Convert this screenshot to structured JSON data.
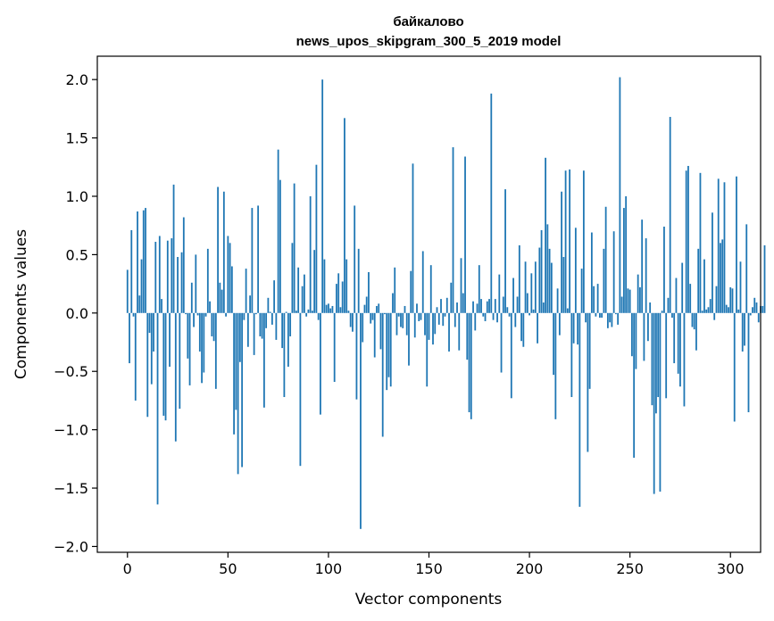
{
  "chart_data": {
    "type": "bar",
    "title": "байкалово",
    "subtitle": "news_upos_skipgram_300_5_2019 model",
    "xlabel": "Vector components",
    "ylabel": "Components values",
    "xlim": [
      -15,
      315
    ],
    "ylim": [
      -2.05,
      2.2
    ],
    "xticks": [
      0,
      50,
      100,
      150,
      200,
      250,
      300
    ],
    "xtick_labels": [
      "0",
      "50",
      "100",
      "150",
      "200",
      "250",
      "300"
    ],
    "yticks": [
      -2.0,
      -1.5,
      -1.0,
      -0.5,
      0.0,
      0.5,
      1.0,
      1.5,
      2.0
    ],
    "ytick_labels": [
      "−2.0",
      "−1.5",
      "−1.0",
      "−0.5",
      "0.0",
      "0.5",
      "1.0",
      "1.5",
      "2.0"
    ],
    "bar_color": "#1f77b4",
    "grid": false,
    "values": [
      0.37,
      -0.43,
      0.71,
      -0.03,
      -0.75,
      0.87,
      0.15,
      0.46,
      0.88,
      0.9,
      -0.89,
      -0.17,
      -0.61,
      -0.33,
      0.61,
      -1.64,
      0.66,
      0.12,
      -0.88,
      -0.92,
      0.62,
      -0.46,
      0.64,
      1.1,
      -1.1,
      0.48,
      -0.82,
      0.52,
      0.82,
      -0.01,
      -0.39,
      -0.62,
      0.26,
      -0.12,
      0.5,
      -0.02,
      -0.33,
      -0.6,
      -0.51,
      -0.03,
      0.55,
      0.1,
      -0.2,
      -0.24,
      -0.65,
      1.08,
      0.26,
      0.2,
      1.04,
      -0.03,
      0.66,
      0.6,
      0.4,
      -1.04,
      -0.83,
      -1.38,
      -0.42,
      -1.32,
      -0.06,
      0.38,
      -0.29,
      0.15,
      0.9,
      -0.36,
      -0.01,
      0.92,
      -0.2,
      -0.22,
      -0.81,
      -0.13,
      0.13,
      0.01,
      -0.1,
      0.28,
      -0.23,
      1.4,
      1.14,
      -0.3,
      -0.72,
      0.01,
      -0.46,
      -0.2,
      0.6,
      1.11,
      0.02,
      0.39,
      -1.31,
      0.23,
      0.33,
      -0.03,
      0.03,
      1.0,
      0.02,
      0.54,
      1.27,
      -0.06,
      -0.87,
      2.0,
      0.46,
      0.07,
      0.08,
      0.04,
      0.06,
      -0.59,
      0.25,
      0.34,
      0.05,
      0.27,
      1.67,
      0.46,
      0.02,
      -0.12,
      -0.16,
      0.92,
      -0.74,
      0.55,
      -1.85,
      -0.25,
      0.07,
      0.14,
      0.35,
      -0.09,
      -0.06,
      -0.38,
      0.06,
      0.08,
      -0.31,
      -1.06,
      -0.01,
      -0.66,
      -0.55,
      -0.63,
      0.17,
      0.39,
      -0.19,
      -0.03,
      -0.12,
      -0.13,
      0.06,
      -0.19,
      -0.45,
      0.36,
      1.28,
      -0.21,
      0.08,
      -0.07,
      -0.06,
      0.53,
      -0.19,
      -0.63,
      -0.23,
      0.41,
      -0.27,
      -0.18,
      0.05,
      -0.1,
      0.12,
      -0.11,
      -0.03,
      0.13,
      -0.33,
      0.26,
      1.42,
      -0.12,
      0.09,
      -0.32,
      0.47,
      0.17,
      1.34,
      -0.4,
      -0.85,
      -0.91,
      0.1,
      -0.15,
      0.08,
      0.41,
      0.12,
      -0.03,
      -0.07,
      0.1,
      0.12,
      1.88,
      -0.06,
      0.12,
      -0.08,
      0.33,
      -0.51,
      0.14,
      1.06,
      0.05,
      -0.03,
      -0.73,
      0.3,
      -0.12,
      0.14,
      0.58,
      -0.24,
      -0.29,
      0.44,
      0.17,
      -0.02,
      0.34,
      0.03,
      0.44,
      -0.26,
      0.56,
      0.71,
      0.09,
      1.33,
      0.76,
      0.55,
      0.43,
      -0.53,
      -0.91,
      0.21,
      -0.19,
      1.04,
      0.48,
      1.22,
      0.04,
      1.23,
      -0.72,
      -0.26,
      0.73,
      -0.27,
      -1.66,
      0.38,
      1.22,
      -0.08,
      -1.19,
      -0.65,
      0.69,
      0.23,
      -0.03,
      0.25,
      -0.04,
      -0.04,
      0.55,
      0.91,
      -0.13,
      -0.08,
      -0.12,
      0.7,
      -0.01,
      -0.1,
      2.02,
      0.14,
      0.9,
      1.0,
      0.21,
      0.2,
      -0.37,
      -1.24,
      -0.48,
      0.33,
      0.22,
      0.8,
      -0.41,
      0.64,
      -0.24,
      0.09,
      -0.79,
      -1.55,
      -0.86,
      -0.72,
      -1.53,
      0.02,
      0.74,
      -0.73,
      0.13,
      1.68,
      -0.04,
      -0.43,
      0.3,
      -0.52,
      -0.63,
      0.43,
      -0.8,
      1.22,
      1.26,
      0.25,
      -0.12,
      -0.14,
      -0.32,
      0.55,
      1.2,
      0.02,
      0.46,
      0.03,
      0.05,
      0.12,
      0.86,
      -0.06,
      0.23,
      1.15,
      0.6,
      0.63,
      1.12,
      0.07,
      0.05,
      0.22,
      0.21,
      -0.93,
      1.17,
      0.03,
      0.44,
      -0.33,
      -0.28,
      0.76,
      -0.85,
      -0.02,
      0.05,
      0.13,
      0.09,
      -0.08,
      0.06,
      0.06,
      0.58
    ]
  }
}
